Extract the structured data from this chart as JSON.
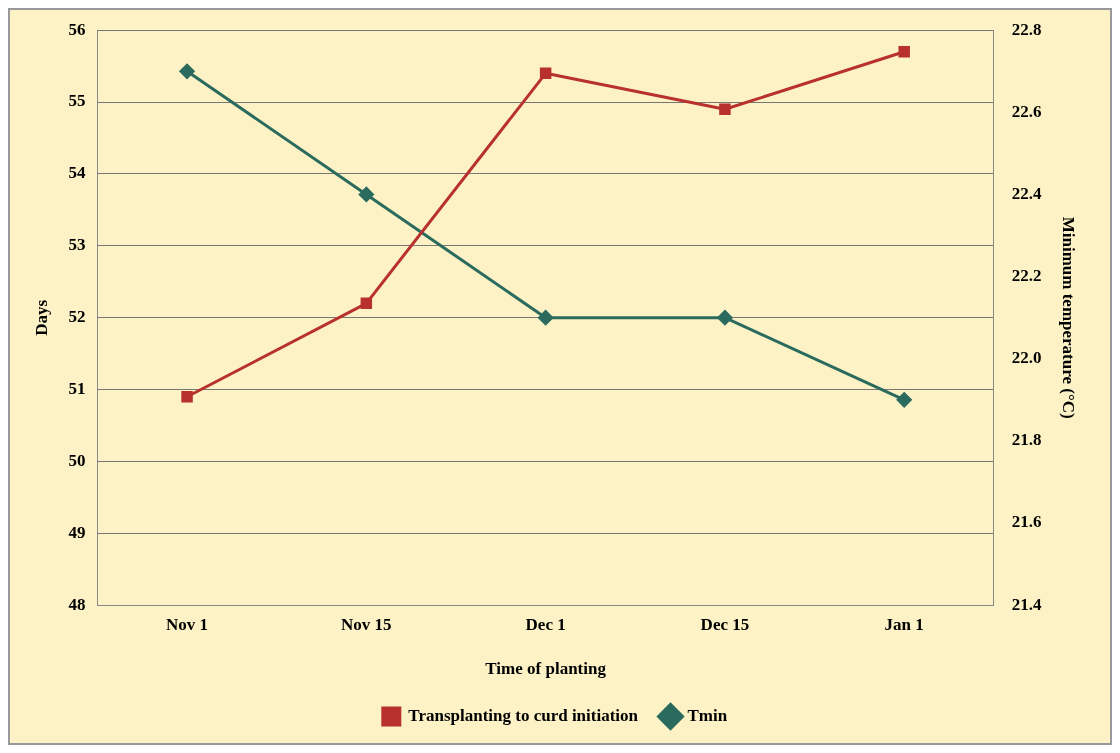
{
  "chart_data": {
    "type": "line",
    "xlabel": "Time of planting",
    "ylabel": "Days",
    "y2label": "Minimum temperature (°C)",
    "categories": [
      "Nov 1",
      "Nov 15",
      "Dec 1",
      "Dec 15",
      "Jan 1"
    ],
    "series": [
      {
        "name": "Transplanting to curd initiation",
        "color": "#b8312f",
        "marker": "square",
        "values": [
          50.9,
          52.2,
          55.4,
          54.9,
          55.7
        ]
      },
      {
        "name": "Tmin",
        "color": "#2a6b5e",
        "marker": "diamond",
        "axis": "y2",
        "values": [
          22.7,
          22.4,
          22.1,
          22.1,
          21.9
        ]
      }
    ],
    "ylim": [
      48,
      56
    ],
    "yticks": [
      48,
      49,
      50,
      51,
      52,
      53,
      54,
      55,
      56
    ],
    "y2lim": [
      21.4,
      22.8
    ],
    "y2ticks": [
      {
        "value": 21.4,
        "label": "21.4"
      },
      {
        "value": 21.6,
        "label": "21.6"
      },
      {
        "value": 21.8,
        "label": "21.8"
      },
      {
        "value": 22,
        "label": "22.0"
      },
      {
        "value": 22.2,
        "label": "22.2"
      },
      {
        "value": 22.4,
        "label": "22.4"
      },
      {
        "value": 22.6,
        "label": "22.6"
      },
      {
        "value": 22.8,
        "label": "22.8"
      }
    ],
    "grid": "y",
    "legend": "bottom",
    "line_style": "solid"
  }
}
